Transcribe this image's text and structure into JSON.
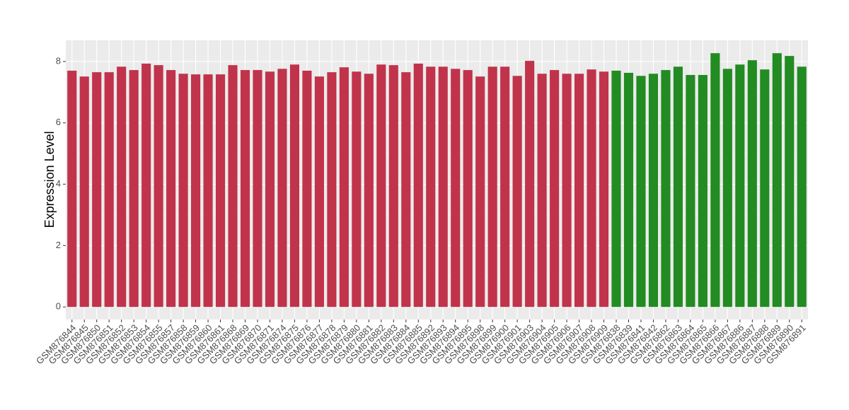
{
  "chart_data": {
    "type": "bar",
    "y_label": "Expression Level",
    "categories": [
      "GSM876844",
      "GSM876845",
      "GSM876850",
      "GSM876851",
      "GSM876852",
      "GSM876853",
      "GSM876854",
      "GSM876855",
      "GSM876857",
      "GSM876858",
      "GSM876859",
      "GSM876860",
      "GSM876861",
      "GSM876868",
      "GSM876869",
      "GSM876870",
      "GSM876871",
      "GSM876874",
      "GSM876875",
      "GSM876876",
      "GSM876877",
      "GSM876878",
      "GSM876879",
      "GSM876880",
      "GSM876881",
      "GSM876882",
      "GSM876883",
      "GSM876884",
      "GSM876885",
      "GSM876892",
      "GSM876893",
      "GSM876894",
      "GSM876895",
      "GSM876898",
      "GSM876899",
      "GSM876900",
      "GSM876901",
      "GSM876903",
      "GSM876904",
      "GSM876905",
      "GSM876906",
      "GSM876907",
      "GSM876908",
      "GSM876909",
      "GSM876838",
      "GSM876839",
      "GSM876841",
      "GSM876842",
      "GSM876862",
      "GSM876863",
      "GSM876864",
      "GSM876865",
      "GSM876866",
      "GSM876867",
      "GSM876886",
      "GSM876887",
      "GSM876888",
      "GSM876889",
      "GSM876890",
      "GSM876891"
    ],
    "values": [
      7.7,
      7.51,
      7.65,
      7.65,
      7.83,
      7.72,
      7.93,
      7.88,
      7.72,
      7.6,
      7.58,
      7.58,
      7.58,
      7.88,
      7.72,
      7.72,
      7.67,
      7.76,
      7.9,
      7.7,
      7.51,
      7.65,
      7.81,
      7.67,
      7.6,
      7.9,
      7.88,
      7.65,
      7.93,
      7.83,
      7.83,
      7.76,
      7.72,
      7.51,
      7.83,
      7.83,
      7.53,
      8.02,
      7.6,
      7.72,
      7.6,
      7.6,
      7.74,
      7.67,
      7.7,
      7.63,
      7.53,
      7.6,
      7.72,
      7.83,
      7.56,
      7.56,
      8.27,
      7.76,
      7.9,
      8.04,
      7.74,
      8.27,
      8.18,
      7.83
    ],
    "colors": [
      "#c0334b",
      "#c0334b",
      "#c0334b",
      "#c0334b",
      "#c0334b",
      "#c0334b",
      "#c0334b",
      "#c0334b",
      "#c0334b",
      "#c0334b",
      "#c0334b",
      "#c0334b",
      "#c0334b",
      "#c0334b",
      "#c0334b",
      "#c0334b",
      "#c0334b",
      "#c0334b",
      "#c0334b",
      "#c0334b",
      "#c0334b",
      "#c0334b",
      "#c0334b",
      "#c0334b",
      "#c0334b",
      "#c0334b",
      "#c0334b",
      "#c0334b",
      "#c0334b",
      "#c0334b",
      "#c0334b",
      "#c0334b",
      "#c0334b",
      "#c0334b",
      "#c0334b",
      "#c0334b",
      "#c0334b",
      "#c0334b",
      "#c0334b",
      "#c0334b",
      "#c0334b",
      "#c0334b",
      "#c0334b",
      "#c0334b",
      "#228b22",
      "#228b22",
      "#228b22",
      "#228b22",
      "#228b22",
      "#228b22",
      "#228b22",
      "#228b22",
      "#228b22",
      "#228b22",
      "#228b22",
      "#228b22",
      "#228b22",
      "#228b22",
      "#228b22",
      "#228b22"
    ],
    "ylim": [
      -0.41,
      8.69
    ],
    "yticks": [
      0,
      2,
      4,
      6,
      8
    ],
    "grid": true
  }
}
